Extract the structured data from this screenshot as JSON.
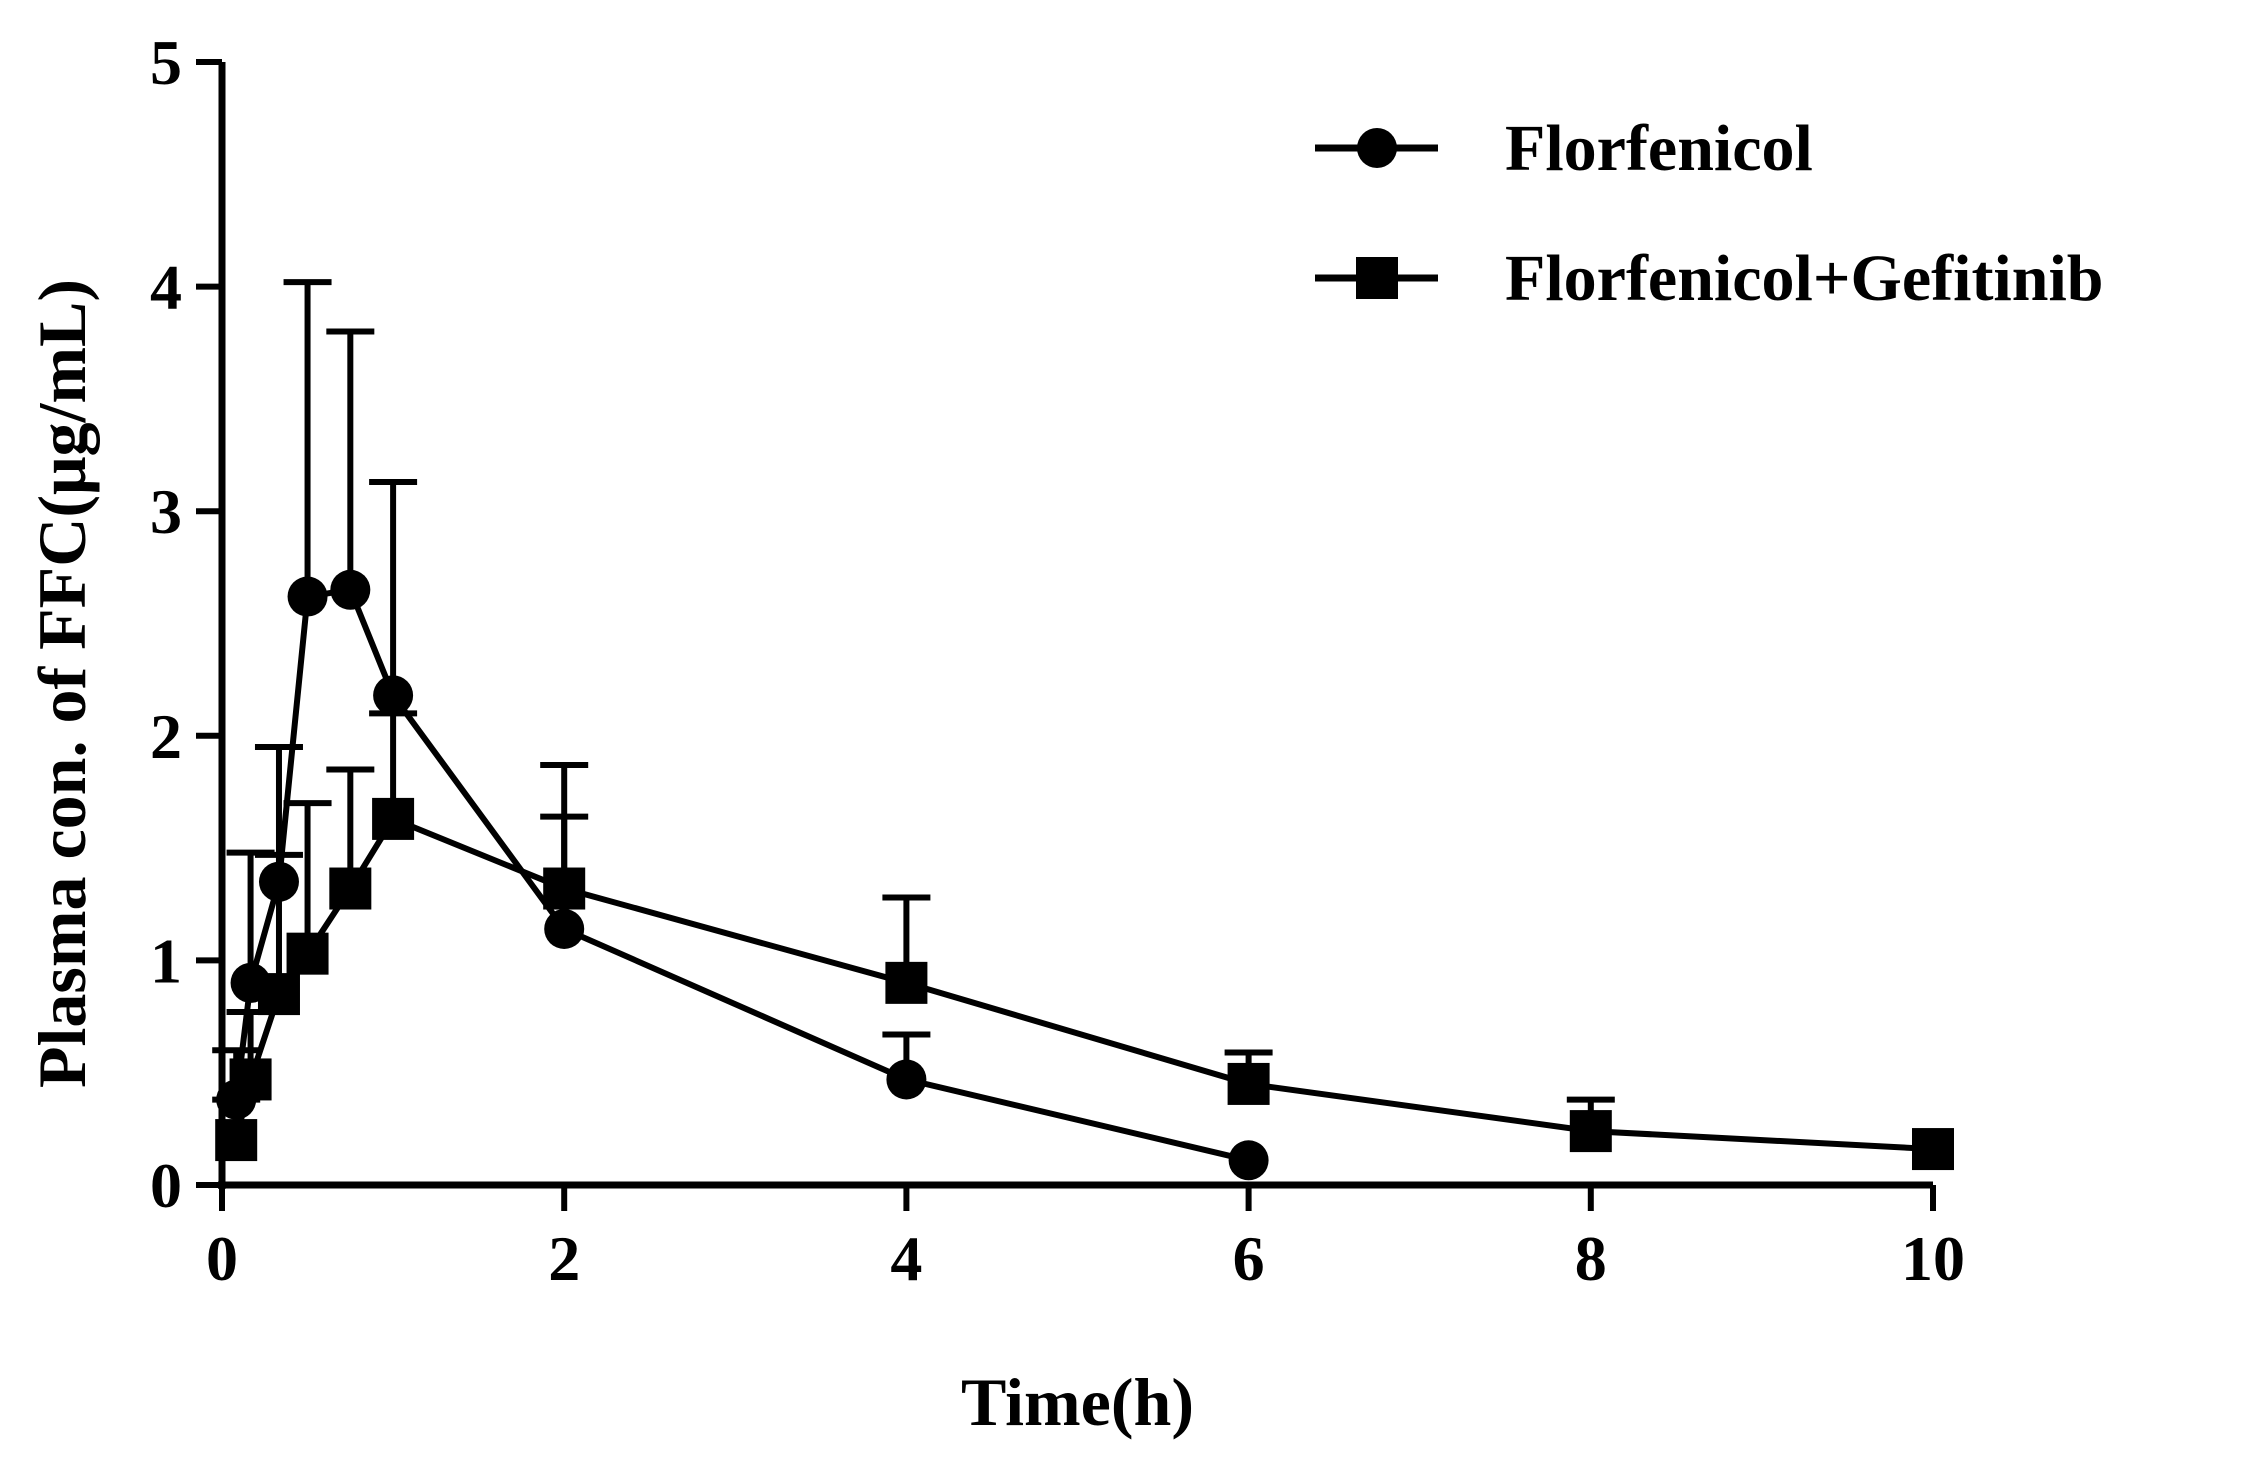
{
  "chart_data": {
    "type": "line",
    "title": "",
    "xlabel": "Time(h)",
    "ylabel": "Plasma con. of FFC(μg/mL)",
    "xlim": [
      0,
      10
    ],
    "ylim": [
      0,
      5
    ],
    "xticks": [
      "0",
      "2",
      "4",
      "6",
      "8",
      "10"
    ],
    "yticks": [
      "0",
      "1",
      "2",
      "3",
      "4",
      "5"
    ],
    "grid": false,
    "legend": "top-right",
    "series": [
      {
        "name": "Florfenicol",
        "marker": "circle",
        "color": "#000000",
        "x": [
          0.083,
          0.167,
          0.333,
          0.5,
          0.75,
          1,
          2,
          4,
          6
        ],
        "y": [
          0.38,
          0.9,
          1.35,
          2.62,
          2.65,
          2.18,
          1.14,
          0.47,
          0.11
        ],
        "error": [
          0.22,
          0.58,
          0.6,
          1.4,
          1.15,
          0.95,
          0.5,
          0.2,
          0
        ]
      },
      {
        "name": "Florfenicol+Gefitinib",
        "marker": "square",
        "color": "#000000",
        "x": [
          0.083,
          0.167,
          0.333,
          0.5,
          0.75,
          1,
          2,
          4,
          6,
          8,
          10
        ],
        "y": [
          0.2,
          0.47,
          0.85,
          1.03,
          1.32,
          1.63,
          1.32,
          0.9,
          0.45,
          0.24,
          0.16
        ],
        "error": [
          0.18,
          0.3,
          0.62,
          0.67,
          0.53,
          0.47,
          0.55,
          0.38,
          0.14,
          0.14,
          0
        ]
      }
    ]
  }
}
